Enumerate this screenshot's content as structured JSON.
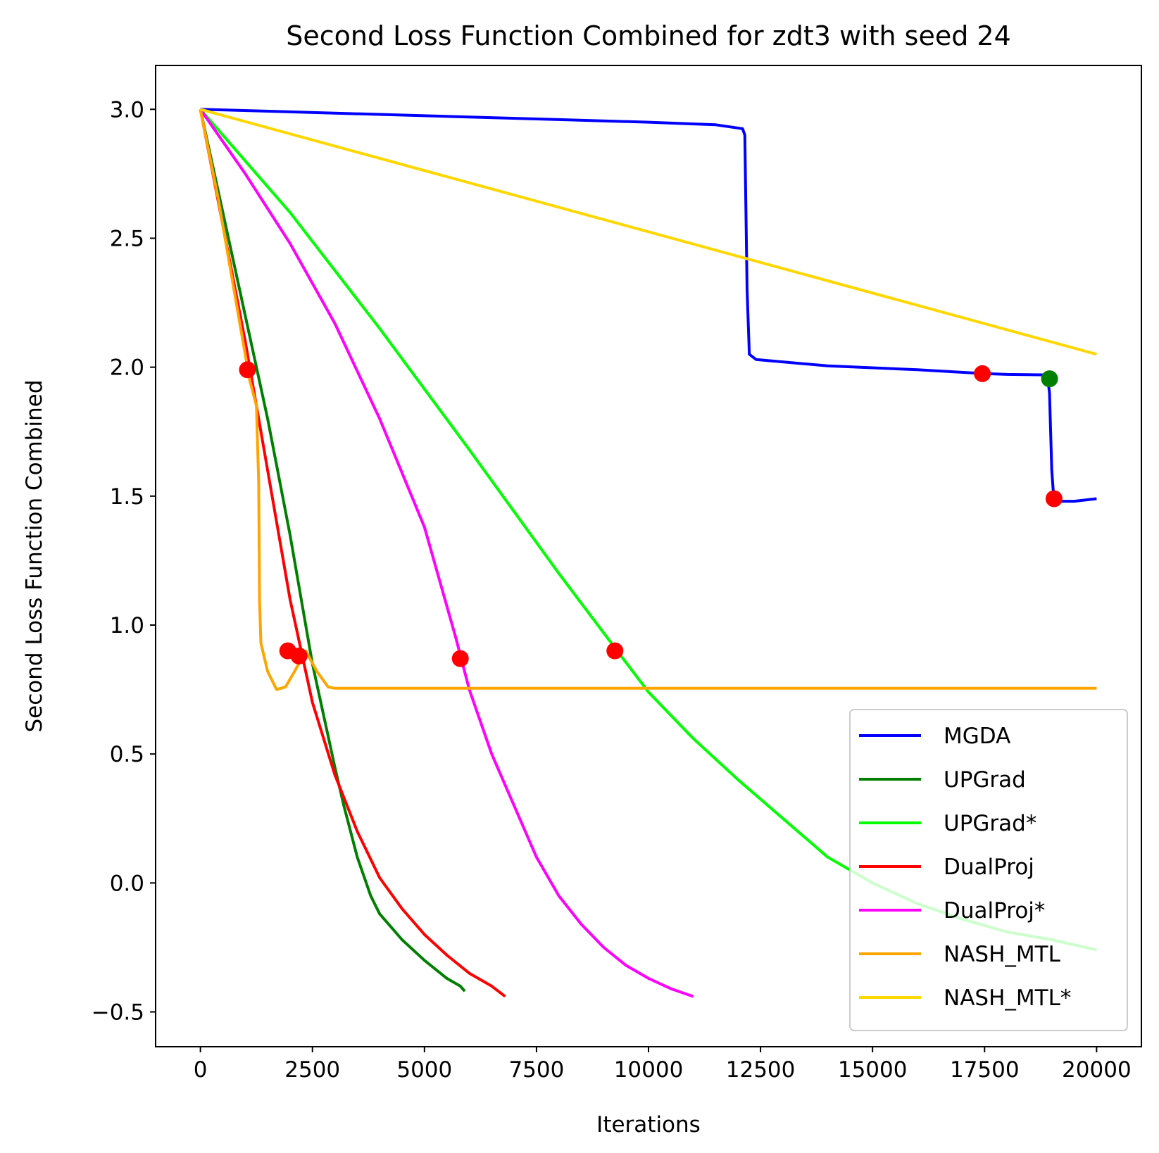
{
  "chart_data": {
    "type": "line",
    "title": "Second Loss Function Combined for zdt3 with seed 24",
    "xlabel": "Iterations",
    "ylabel": "Second Loss Function Combined",
    "xlim": [
      -1000,
      21000
    ],
    "ylim": [
      -0.635,
      3.17
    ],
    "xticks": [
      0,
      2500,
      5000,
      7500,
      10000,
      12500,
      15000,
      17500,
      20000
    ],
    "xtick_labels": [
      "0",
      "2500",
      "5000",
      "7500",
      "10000",
      "12500",
      "15000",
      "17500",
      "20000"
    ],
    "yticks": [
      -0.5,
      0.0,
      0.5,
      1.0,
      1.5,
      2.0,
      2.5,
      3.0
    ],
    "ytick_labels": [
      "−0.5",
      "0.0",
      "0.5",
      "1.0",
      "1.5",
      "2.0",
      "2.5",
      "3.0"
    ],
    "grid": false,
    "legend_position": "lower-right",
    "series": [
      {
        "name": "MGDA",
        "color": "#0000ff",
        "points": [
          [
            0,
            3.0
          ],
          [
            2000,
            2.99
          ],
          [
            5000,
            2.975
          ],
          [
            8000,
            2.96
          ],
          [
            10000,
            2.95
          ],
          [
            11500,
            2.94
          ],
          [
            12100,
            2.925
          ],
          [
            12150,
            2.9
          ],
          [
            12200,
            2.3
          ],
          [
            12250,
            2.05
          ],
          [
            12400,
            2.03
          ],
          [
            14000,
            2.005
          ],
          [
            16000,
            1.99
          ],
          [
            17500,
            1.975
          ],
          [
            18000,
            1.972
          ],
          [
            18900,
            1.97
          ],
          [
            18950,
            1.9
          ],
          [
            19000,
            1.6
          ],
          [
            19050,
            1.48
          ],
          [
            19500,
            1.48
          ],
          [
            20000,
            1.49
          ]
        ]
      },
      {
        "name": "UPGrad",
        "color": "#008000",
        "points": [
          [
            0,
            3.0
          ],
          [
            500,
            2.6
          ],
          [
            1000,
            2.2
          ],
          [
            1500,
            1.8
          ],
          [
            2000,
            1.35
          ],
          [
            2500,
            0.85
          ],
          [
            3000,
            0.45
          ],
          [
            3200,
            0.3
          ],
          [
            3500,
            0.1
          ],
          [
            3800,
            -0.05
          ],
          [
            4000,
            -0.12
          ],
          [
            4500,
            -0.22
          ],
          [
            5000,
            -0.3
          ],
          [
            5500,
            -0.37
          ],
          [
            5800,
            -0.4
          ],
          [
            5900,
            -0.42
          ]
        ]
      },
      {
        "name": "UPGrad*",
        "color": "#00ff00",
        "points": [
          [
            0,
            3.0
          ],
          [
            2000,
            2.6
          ],
          [
            4000,
            2.15
          ],
          [
            6000,
            1.68
          ],
          [
            8000,
            1.2
          ],
          [
            9300,
            0.9
          ],
          [
            10000,
            0.74
          ],
          [
            11000,
            0.56
          ],
          [
            12000,
            0.4
          ],
          [
            13000,
            0.25
          ],
          [
            14000,
            0.1
          ],
          [
            15000,
            0.0
          ],
          [
            16000,
            -0.08
          ],
          [
            17000,
            -0.14
          ],
          [
            18000,
            -0.19
          ],
          [
            19000,
            -0.22
          ],
          [
            20000,
            -0.26
          ]
        ]
      },
      {
        "name": "DualProj",
        "color": "#ff0000",
        "points": [
          [
            0,
            3.0
          ],
          [
            500,
            2.55
          ],
          [
            1000,
            2.1
          ],
          [
            1500,
            1.6
          ],
          [
            2000,
            1.1
          ],
          [
            2500,
            0.7
          ],
          [
            3000,
            0.42
          ],
          [
            3500,
            0.2
          ],
          [
            4000,
            0.02
          ],
          [
            4500,
            -0.1
          ],
          [
            5000,
            -0.2
          ],
          [
            5500,
            -0.28
          ],
          [
            6000,
            -0.35
          ],
          [
            6500,
            -0.4
          ],
          [
            6800,
            -0.44
          ]
        ]
      },
      {
        "name": "DualProj*",
        "color": "#ff00ff",
        "points": [
          [
            0,
            3.0
          ],
          [
            1000,
            2.75
          ],
          [
            2000,
            2.48
          ],
          [
            3000,
            2.17
          ],
          [
            4000,
            1.8
          ],
          [
            5000,
            1.38
          ],
          [
            5700,
            0.95
          ],
          [
            6000,
            0.75
          ],
          [
            6500,
            0.5
          ],
          [
            7000,
            0.3
          ],
          [
            7500,
            0.1
          ],
          [
            8000,
            -0.05
          ],
          [
            8500,
            -0.16
          ],
          [
            9000,
            -0.25
          ],
          [
            9500,
            -0.32
          ],
          [
            10000,
            -0.37
          ],
          [
            10500,
            -0.41
          ],
          [
            11000,
            -0.44
          ]
        ]
      },
      {
        "name": "NASH_MTL",
        "color": "#ffa500",
        "points": [
          [
            0,
            3.0
          ],
          [
            400,
            2.65
          ],
          [
            800,
            2.25
          ],
          [
            1100,
            1.95
          ],
          [
            1250,
            1.85
          ],
          [
            1300,
            1.55
          ],
          [
            1320,
            1.1
          ],
          [
            1350,
            0.93
          ],
          [
            1500,
            0.82
          ],
          [
            1700,
            0.75
          ],
          [
            1900,
            0.76
          ],
          [
            2100,
            0.82
          ],
          [
            2350,
            0.9
          ],
          [
            2600,
            0.82
          ],
          [
            2850,
            0.76
          ],
          [
            3000,
            0.755
          ],
          [
            20000,
            0.755
          ]
        ]
      },
      {
        "name": "NASH_MTL*",
        "color": "#ffd700",
        "points": [
          [
            0,
            3.0
          ],
          [
            20000,
            2.05
          ]
        ]
      }
    ],
    "markers": [
      {
        "x": 1050,
        "y": 1.99,
        "color": "#ff0000"
      },
      {
        "x": 1950,
        "y": 0.9,
        "color": "#ff0000"
      },
      {
        "x": 2200,
        "y": 0.88,
        "color": "#ff0000"
      },
      {
        "x": 5800,
        "y": 0.87,
        "color": "#ff0000"
      },
      {
        "x": 9250,
        "y": 0.9,
        "color": "#ff0000"
      },
      {
        "x": 17450,
        "y": 1.975,
        "color": "#ff0000"
      },
      {
        "x": 18950,
        "y": 1.955,
        "color": "#008000"
      },
      {
        "x": 19050,
        "y": 1.49,
        "color": "#ff0000"
      }
    ]
  }
}
